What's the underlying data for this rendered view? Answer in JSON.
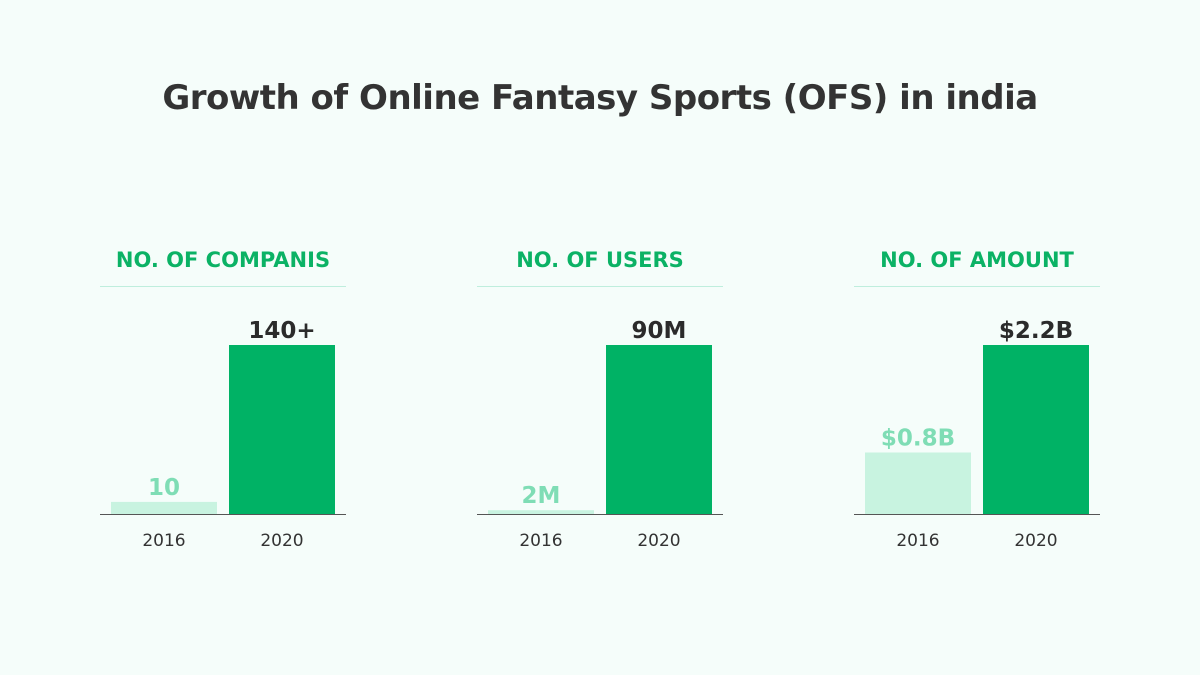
{
  "title": "Growth of Online Fantasy Sports (OFS) in india",
  "colors": {
    "background": "#f5fdfa",
    "title_text": "#333333",
    "heading_text": "#0bb265",
    "bar_2016": "#c8f3e0",
    "bar_2020": "#00b265",
    "label_2016": "#7fddb5",
    "label_2020": "#2b2b2b",
    "axis": "#555555",
    "rule": "#bfeedd"
  },
  "chart_data": [
    {
      "type": "bar",
      "title": "NO. OF COMPANIS",
      "categories": [
        "2016",
        "2020"
      ],
      "values": [
        10,
        140
      ],
      "value_labels": [
        "10",
        "140+"
      ],
      "ylim": [
        0,
        140
      ]
    },
    {
      "type": "bar",
      "title": "NO. OF USERS",
      "categories": [
        "2016",
        "2020"
      ],
      "values": [
        2,
        90
      ],
      "value_labels": [
        "2M",
        "90M"
      ],
      "ylim": [
        0,
        90
      ]
    },
    {
      "type": "bar",
      "title": "NO. OF AMOUNT",
      "categories": [
        "2016",
        "2020"
      ],
      "values": [
        0.8,
        2.2
      ],
      "value_labels": [
        "$0.8B",
        "$2.2B"
      ],
      "ylim": [
        0,
        2.2
      ]
    }
  ]
}
